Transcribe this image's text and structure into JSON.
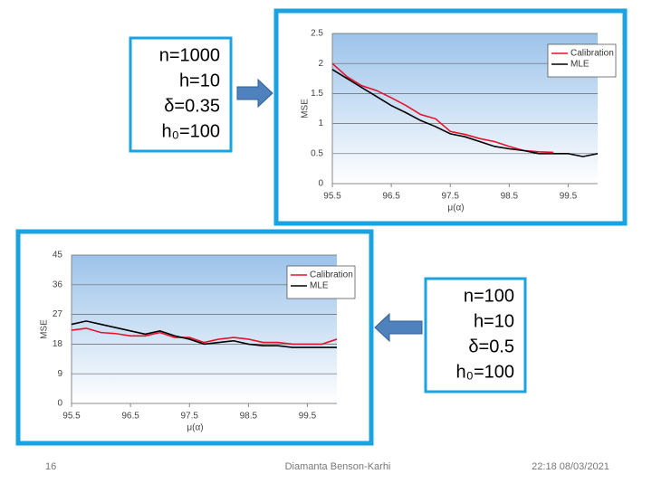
{
  "chart_data": [
    {
      "type": "line",
      "ylabel": "MSE",
      "xlabel": "μ(α)",
      "x": [
        95.5,
        95.75,
        96.0,
        96.25,
        96.5,
        96.75,
        97.0,
        97.25,
        97.5,
        97.75,
        98.0,
        98.25,
        98.5,
        98.75,
        99.0,
        99.25,
        99.5,
        99.75,
        100.0
      ],
      "series": [
        {
          "name": "Calibration",
          "color": "#e8112d",
          "values": [
            2.0,
            1.78,
            1.63,
            1.55,
            1.43,
            1.3,
            1.15,
            1.08,
            0.87,
            0.82,
            0.75,
            0.7,
            0.62,
            0.55,
            0.53,
            0.52,
            null,
            null,
            null
          ]
        },
        {
          "name": "MLE",
          "color": "#000000",
          "values": [
            1.9,
            1.75,
            1.6,
            1.45,
            1.3,
            1.18,
            1.05,
            0.95,
            0.83,
            0.78,
            0.7,
            0.62,
            0.58,
            0.55,
            0.5,
            0.5,
            0.5,
            0.45,
            0.5
          ]
        }
      ],
      "xlim": [
        95.5,
        100.0
      ],
      "xticks": [
        95.5,
        96.5,
        97.5,
        98.5,
        99.5
      ],
      "ylim": [
        0,
        2.5
      ],
      "yticks": [
        0,
        0.5,
        1,
        1.5,
        2,
        2.5
      ],
      "grid": true,
      "legend": "upper right"
    },
    {
      "type": "line",
      "ylabel": "MSE",
      "xlabel": "μ(α)",
      "x": [
        95.5,
        95.75,
        96.0,
        96.25,
        96.5,
        96.75,
        97.0,
        97.25,
        97.5,
        97.75,
        98.0,
        98.25,
        98.5,
        98.75,
        99.0,
        99.25,
        99.5,
        99.75,
        100.0
      ],
      "series": [
        {
          "name": "Calibration",
          "color": "#e8112d",
          "values": [
            22.2,
            22.8,
            21.5,
            21.2,
            20.5,
            20.5,
            21.5,
            20,
            20,
            18.5,
            19.5,
            20,
            19.5,
            18.5,
            18.5,
            18,
            18,
            18,
            19.5
          ]
        },
        {
          "name": "MLE",
          "color": "#000000",
          "values": [
            24,
            25,
            24,
            23,
            22,
            21,
            22,
            20.5,
            19.5,
            18,
            18.5,
            19,
            18,
            17.5,
            17.5,
            17,
            17,
            17,
            17
          ]
        }
      ],
      "xlim": [
        95.5,
        100.0
      ],
      "xticks": [
        95.5,
        96.5,
        97.5,
        98.5,
        99.5
      ],
      "ylim": [
        0,
        45
      ],
      "yticks": [
        0,
        9,
        18,
        27,
        36,
        45
      ],
      "grid": true,
      "legend": "upper right"
    }
  ],
  "text_boxes": [
    {
      "lines": [
        "n=1000",
        "h=10",
        "δ=0.35",
        "h₀=100"
      ]
    },
    {
      "lines": [
        "n=100",
        "h=10",
        "δ=0.5",
        "h₀=100"
      ]
    }
  ],
  "footer": {
    "page_number": "16",
    "author": "Diamanta Benson-Karhi",
    "date": "22:18 08/03/2021"
  }
}
